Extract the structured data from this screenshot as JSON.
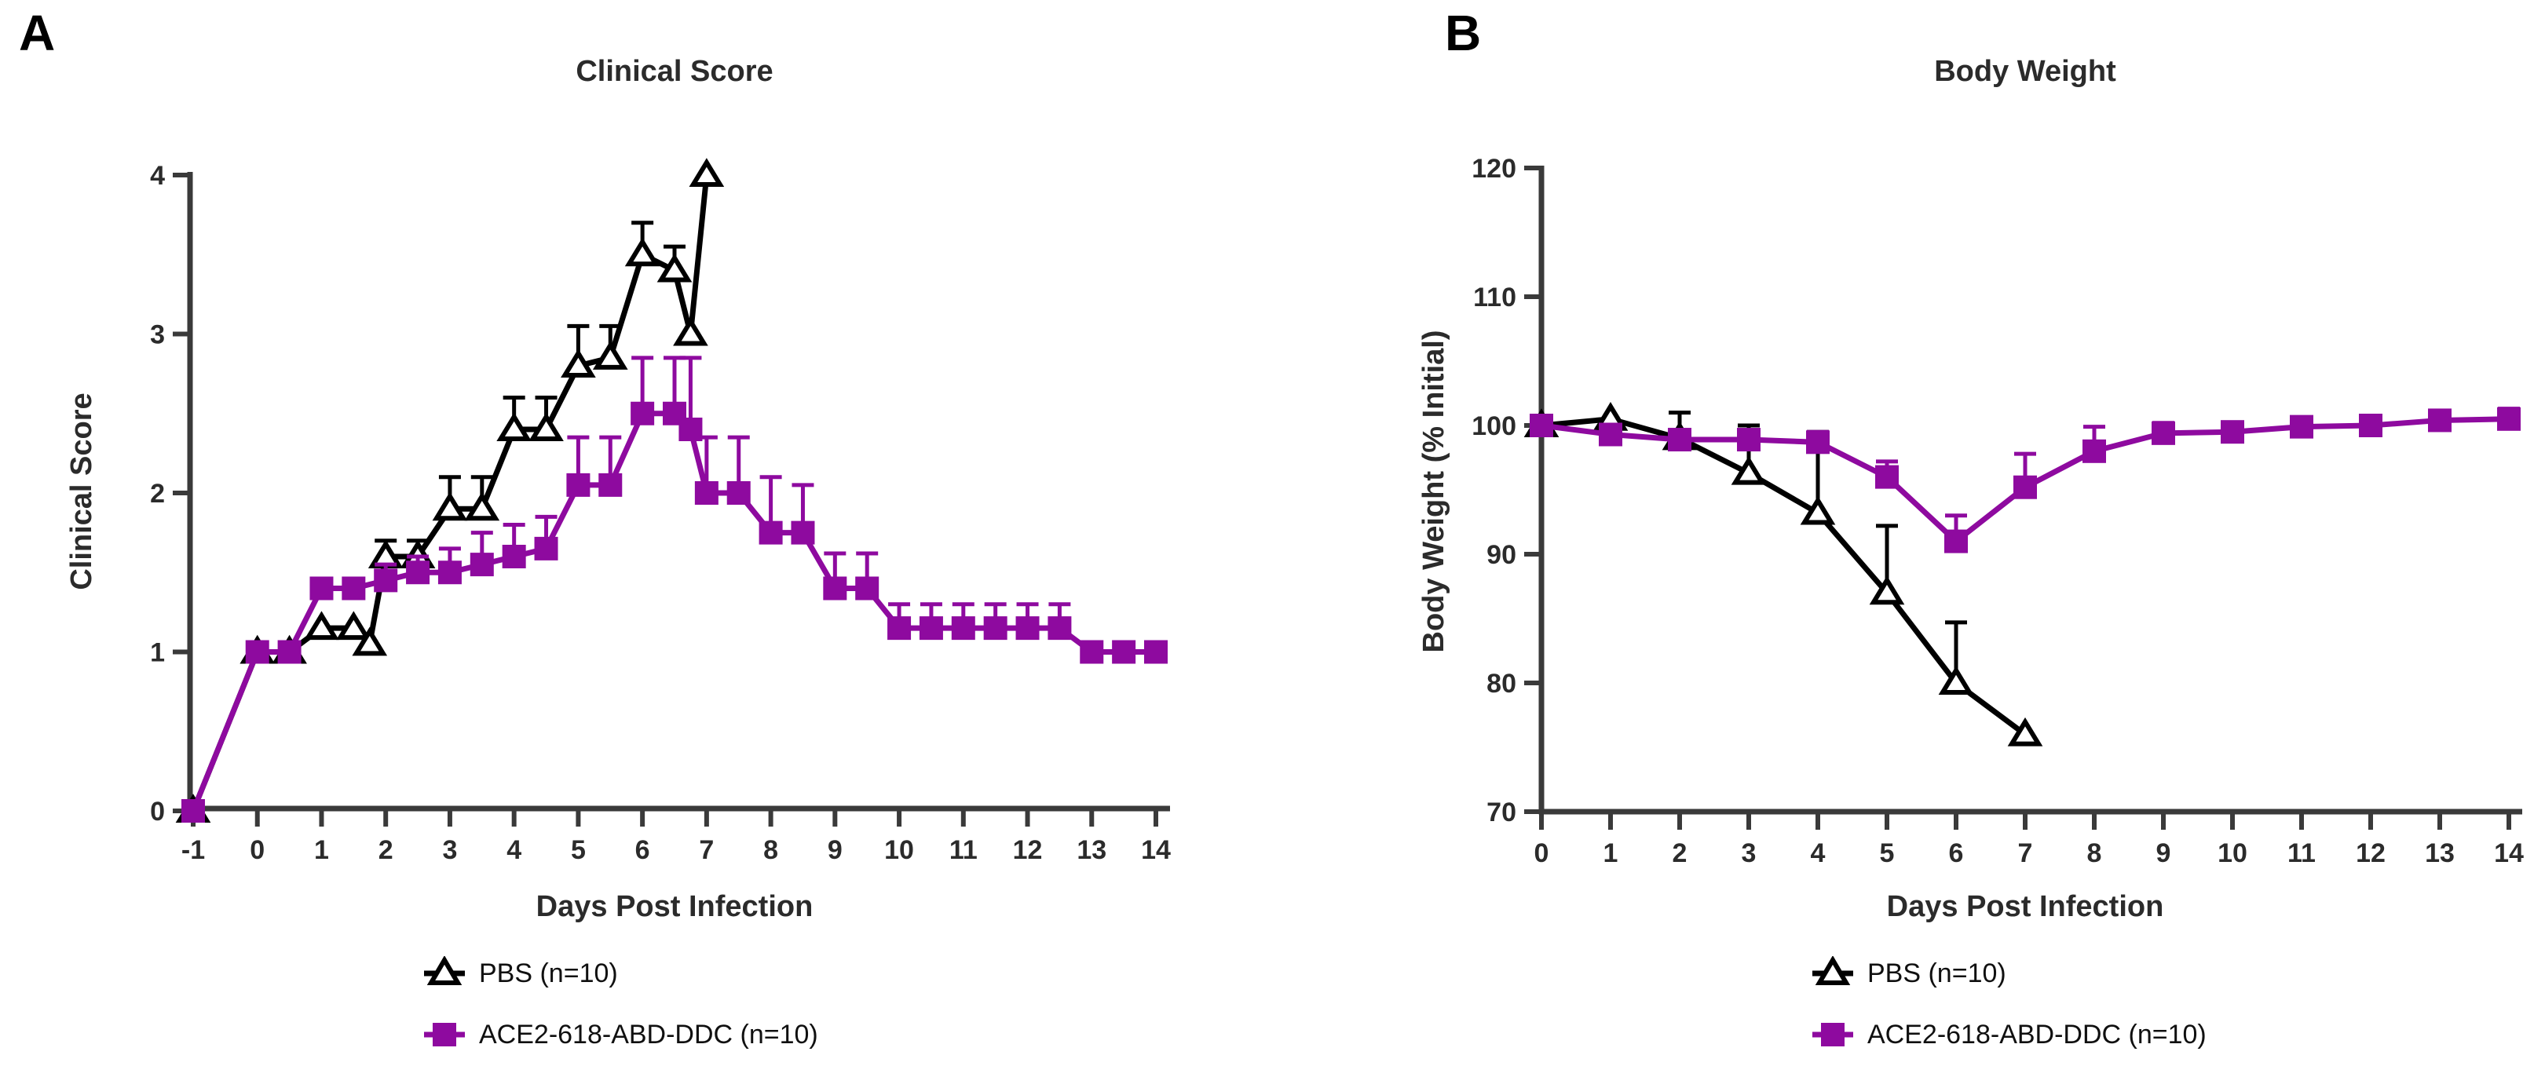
{
  "chart_data": [
    {
      "type": "line",
      "letter": "A",
      "title": "Clinical Score",
      "xlabel": "Days Post Infection",
      "ylabel": "Clinical Score",
      "x_range": [
        -1,
        14
      ],
      "y_range": [
        0,
        4
      ],
      "x_ticks": [
        -1,
        0,
        1,
        2,
        3,
        4,
        5,
        6,
        7,
        8,
        9,
        10,
        11,
        12,
        13,
        14
      ],
      "y_ticks": [
        0,
        1,
        2,
        3,
        4
      ],
      "grid": false,
      "legend_position": "bottom",
      "legend": [
        {
          "label": "PBS (n=10)",
          "marker": "open-triangle",
          "color": "#000000"
        },
        {
          "label": "ACE2-618-ABD-DDC (n=10)",
          "marker": "filled-square",
          "color": "#8E0A9F"
        }
      ],
      "series": [
        {
          "name": "PBS (n=10)",
          "marker": "open-triangle",
          "color": "#000000",
          "points": [
            {
              "x": -1,
              "y": 0,
              "err": 0
            },
            {
              "x": 0,
              "y": 1.0,
              "err": 0
            },
            {
              "x": 0.5,
              "y": 1.0,
              "err": 0
            },
            {
              "x": 1,
              "y": 1.15,
              "err": 0
            },
            {
              "x": 1.5,
              "y": 1.15,
              "err": 0
            },
            {
              "x": 1.75,
              "y": 1.05,
              "err": 0
            },
            {
              "x": 2,
              "y": 1.6,
              "err": 0.1
            },
            {
              "x": 2.5,
              "y": 1.6,
              "err": 0.1
            },
            {
              "x": 3,
              "y": 1.9,
              "err": 0.2
            },
            {
              "x": 3.5,
              "y": 1.9,
              "err": 0.2
            },
            {
              "x": 4,
              "y": 2.4,
              "err": 0.2
            },
            {
              "x": 4.5,
              "y": 2.4,
              "err": 0.2
            },
            {
              "x": 5,
              "y": 2.8,
              "err": 0.25
            },
            {
              "x": 5.5,
              "y": 2.85,
              "err": 0.2
            },
            {
              "x": 6,
              "y": 3.5,
              "err": 0.2
            },
            {
              "x": 6.5,
              "y": 3.4,
              "err": 0.15
            },
            {
              "x": 6.75,
              "y": 3.0,
              "err": 0
            },
            {
              "x": 7,
              "y": 4.0,
              "err": 0
            }
          ]
        },
        {
          "name": "ACE2-618-ABD-DDC (n=10)",
          "marker": "filled-square",
          "color": "#8E0A9F",
          "points": [
            {
              "x": -1,
              "y": 0,
              "err": 0
            },
            {
              "x": 0,
              "y": 1.0,
              "err": 0
            },
            {
              "x": 0.5,
              "y": 1.0,
              "err": 0
            },
            {
              "x": 1,
              "y": 1.4,
              "err": 0
            },
            {
              "x": 1.5,
              "y": 1.4,
              "err": 0
            },
            {
              "x": 2,
              "y": 1.45,
              "err": 0.1
            },
            {
              "x": 2.5,
              "y": 1.5,
              "err": 0.1
            },
            {
              "x": 3,
              "y": 1.5,
              "err": 0.15
            },
            {
              "x": 3.5,
              "y": 1.55,
              "err": 0.2
            },
            {
              "x": 4,
              "y": 1.6,
              "err": 0.2
            },
            {
              "x": 4.5,
              "y": 1.65,
              "err": 0.2
            },
            {
              "x": 5,
              "y": 2.05,
              "err": 0.3
            },
            {
              "x": 5.5,
              "y": 2.05,
              "err": 0.3
            },
            {
              "x": 6,
              "y": 2.5,
              "err": 0.35
            },
            {
              "x": 6.5,
              "y": 2.5,
              "err": 0.35
            },
            {
              "x": 6.75,
              "y": 2.4,
              "err": 0.45
            },
            {
              "x": 7,
              "y": 2.0,
              "err": 0.35
            },
            {
              "x": 7.5,
              "y": 2.0,
              "err": 0.35
            },
            {
              "x": 8,
              "y": 1.75,
              "err": 0.35
            },
            {
              "x": 8.5,
              "y": 1.75,
              "err": 0.3
            },
            {
              "x": 9,
              "y": 1.4,
              "err": 0.22
            },
            {
              "x": 9.5,
              "y": 1.4,
              "err": 0.22
            },
            {
              "x": 10,
              "y": 1.15,
              "err": 0.15
            },
            {
              "x": 10.5,
              "y": 1.15,
              "err": 0.15
            },
            {
              "x": 11,
              "y": 1.15,
              "err": 0.15
            },
            {
              "x": 11.5,
              "y": 1.15,
              "err": 0.15
            },
            {
              "x": 12,
              "y": 1.15,
              "err": 0.15
            },
            {
              "x": 12.5,
              "y": 1.15,
              "err": 0.15
            },
            {
              "x": 13,
              "y": 1.0,
              "err": 0
            },
            {
              "x": 13.5,
              "y": 1.0,
              "err": 0
            },
            {
              "x": 14,
              "y": 1.0,
              "err": 0
            }
          ]
        }
      ]
    },
    {
      "type": "line",
      "letter": "B",
      "title": "Body Weight",
      "xlabel": "Days Post Infection",
      "ylabel": "Body Weight (% Initial)",
      "x_range": [
        0,
        14
      ],
      "y_range": [
        70,
        120
      ],
      "x_ticks": [
        0,
        1,
        2,
        3,
        4,
        5,
        6,
        7,
        8,
        9,
        10,
        11,
        12,
        13,
        14
      ],
      "y_ticks": [
        70,
        80,
        90,
        100,
        110,
        120
      ],
      "grid": false,
      "legend_position": "bottom",
      "legend": [
        {
          "label": "PBS (n=10)",
          "marker": "open-triangle",
          "color": "#000000"
        },
        {
          "label": "ACE2-618-ABD-DDC (n=10)",
          "marker": "filled-square",
          "color": "#8E0A9F"
        }
      ],
      "series": [
        {
          "name": "PBS (n=10)",
          "marker": "open-triangle",
          "color": "#000000",
          "points": [
            {
              "x": 0,
              "y": 100,
              "err": 0
            },
            {
              "x": 1,
              "y": 100.5,
              "err": 0
            },
            {
              "x": 2,
              "y": 99,
              "err": 2
            },
            {
              "x": 3,
              "y": 96.3,
              "err": 3.7
            },
            {
              "x": 4,
              "y": 93.2,
              "err": 6.3
            },
            {
              "x": 5,
              "y": 87,
              "err": 5.2
            },
            {
              "x": 6,
              "y": 80,
              "err": 4.7
            },
            {
              "x": 7,
              "y": 76,
              "err": 0
            }
          ]
        },
        {
          "name": "ACE2-618-ABD-DDC (n=10)",
          "marker": "filled-square",
          "color": "#8E0A9F",
          "points": [
            {
              "x": 0,
              "y": 100,
              "err": 0
            },
            {
              "x": 1,
              "y": 99.3,
              "err": 0
            },
            {
              "x": 2,
              "y": 98.9,
              "err": 0.6
            },
            {
              "x": 3,
              "y": 98.9,
              "err": 0.6
            },
            {
              "x": 4,
              "y": 98.7,
              "err": 0.8
            },
            {
              "x": 5,
              "y": 96,
              "err": 1.2
            },
            {
              "x": 6,
              "y": 91,
              "err": 2
            },
            {
              "x": 7,
              "y": 95.2,
              "err": 2.6
            },
            {
              "x": 8,
              "y": 98,
              "err": 1.9
            },
            {
              "x": 9,
              "y": 99.4,
              "err": 0.8
            },
            {
              "x": 10,
              "y": 99.5,
              "err": 0.6
            },
            {
              "x": 11,
              "y": 99.9,
              "err": 0.6
            },
            {
              "x": 12,
              "y": 100,
              "err": 0.6
            },
            {
              "x": 13,
              "y": 100.4,
              "err": 0.6
            },
            {
              "x": 14,
              "y": 100.5,
              "err": 0.8
            }
          ]
        }
      ]
    }
  ]
}
